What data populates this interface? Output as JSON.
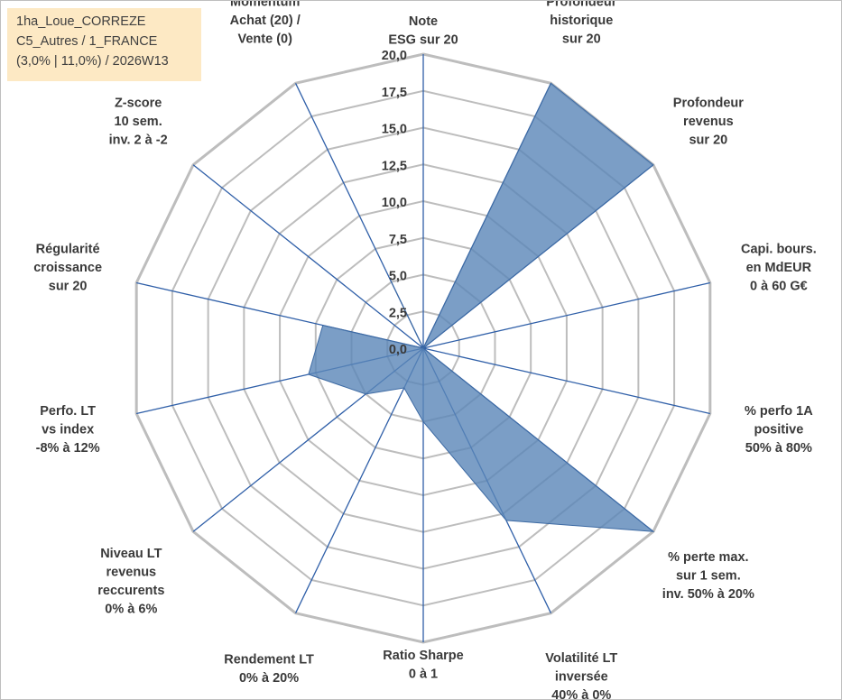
{
  "info": {
    "line1": "1ha_Loue_CORREZE",
    "line2": "C5_Autres / 1_FRANCE",
    "line3": "(3,0% | 11,0%) / 2026W13"
  },
  "chart_data": {
    "type": "radar",
    "title": "",
    "rlim": [
      0,
      20
    ],
    "ticks": [
      "0,0",
      "2,5",
      "5,0",
      "7,5",
      "10,0",
      "12,5",
      "15,0",
      "17,5",
      "20,0"
    ],
    "grid": true,
    "axes": [
      [
        "Note",
        "ESG sur 20"
      ],
      [
        "Profondeur",
        "historique",
        "sur 20"
      ],
      [
        "Profondeur",
        "revenus",
        "sur 20"
      ],
      [
        "Capi. bours.",
        "en MdEUR",
        "0 à 60 G€"
      ],
      [
        "% perfo 1A",
        "positive",
        "50% à 80%"
      ],
      [
        "% perte max.",
        "sur 1 sem.",
        "inv. 50% à 20%"
      ],
      [
        "Volatilité LT",
        "inversée",
        "40% à 0%"
      ],
      [
        "Ratio Sharpe",
        "0 à 1"
      ],
      [
        "Rendement LT",
        "0% à 20%"
      ],
      [
        "Niveau LT",
        "revenus",
        "reccurents",
        "0% à 6%"
      ],
      [
        "Perfo. LT",
        "vs index",
        "-8% à 12%"
      ],
      [
        "Régularité",
        "croissance",
        "sur 20"
      ],
      [
        "Z-score",
        "10 sem.",
        "inv. 2 à -2"
      ],
      [
        "Momentum",
        "Achat (20) /",
        "Vente (0)"
      ]
    ],
    "series": [
      {
        "values": [
          0,
          20,
          20,
          0,
          0,
          20,
          13,
          5,
          3,
          5,
          8,
          7,
          0,
          5
        ],
        "color": "#5a86b8"
      }
    ]
  }
}
